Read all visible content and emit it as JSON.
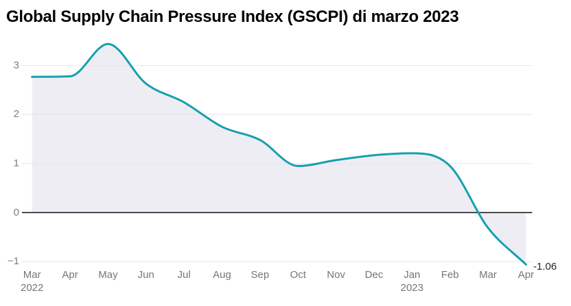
{
  "chart_data": {
    "type": "area",
    "title": "Global Supply Chain Pressure Index (GSCPI) di marzo 2023",
    "x_ticks": [
      {
        "label": "Mar",
        "sub": "2022"
      },
      {
        "label": "Apr",
        "sub": ""
      },
      {
        "label": "May",
        "sub": ""
      },
      {
        "label": "Jun",
        "sub": ""
      },
      {
        "label": "Jul",
        "sub": ""
      },
      {
        "label": "Aug",
        "sub": ""
      },
      {
        "label": "Sep",
        "sub": ""
      },
      {
        "label": "Oct",
        "sub": ""
      },
      {
        "label": "Nov",
        "sub": ""
      },
      {
        "label": "Dec",
        "sub": ""
      },
      {
        "label": "Jan",
        "sub": "2023"
      },
      {
        "label": "Feb",
        "sub": ""
      },
      {
        "label": "Mar",
        "sub": ""
      },
      {
        "label": "Apr",
        "sub": ""
      }
    ],
    "values": [
      2.77,
      2.78,
      3.44,
      2.63,
      2.25,
      1.75,
      1.48,
      0.95,
      1.07,
      1.17,
      1.21,
      0.95,
      -0.31,
      -1.06
    ],
    "end_label": "-1.06",
    "y_ticks": [
      {
        "label": "3",
        "value": 3
      },
      {
        "label": "2",
        "value": 2
      },
      {
        "label": "1",
        "value": 1
      },
      {
        "label": "0",
        "value": 0
      },
      {
        "label": "−1",
        "value": -1
      }
    ],
    "ylim": [
      -1.35,
      3.6
    ],
    "baseline": 0,
    "grid": "horizontal",
    "legend": "none",
    "line_color": "#15a0ae",
    "fill_color": "#eeedf4",
    "grid_color": "#e4e4e8",
    "zero_line_color": "#0d0d0d",
    "tick_color": "#757575"
  }
}
